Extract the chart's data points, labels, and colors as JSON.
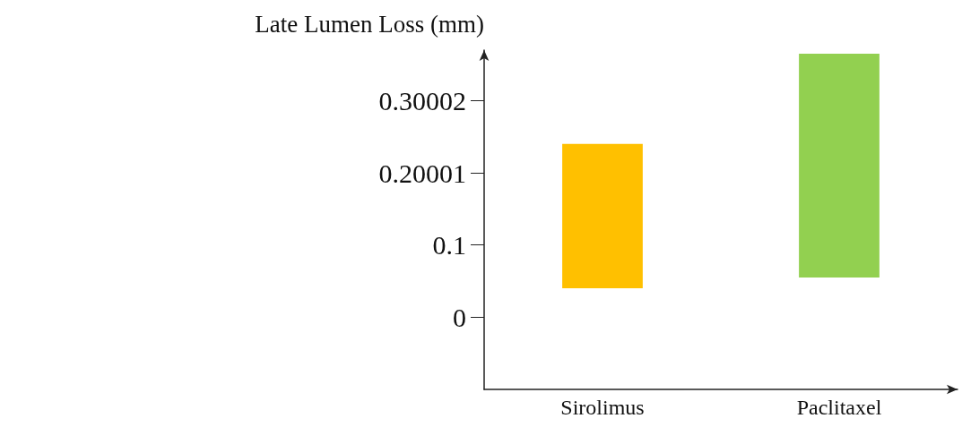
{
  "chart_data": {
    "type": "bar",
    "ylabel": "Late Lumen Loss (mm)",
    "categories": [
      "Sirolimus",
      "Paclitaxel"
    ],
    "values": [
      0.2,
      0.31
    ],
    "base": [
      0.04,
      0.055
    ],
    "colors": [
      "#ffc000",
      "#92d050"
    ],
    "ylim": [
      -0.1,
      0.37
    ],
    "yticks": [
      0,
      0.1,
      0.20001,
      0.30002
    ],
    "grid": false
  }
}
